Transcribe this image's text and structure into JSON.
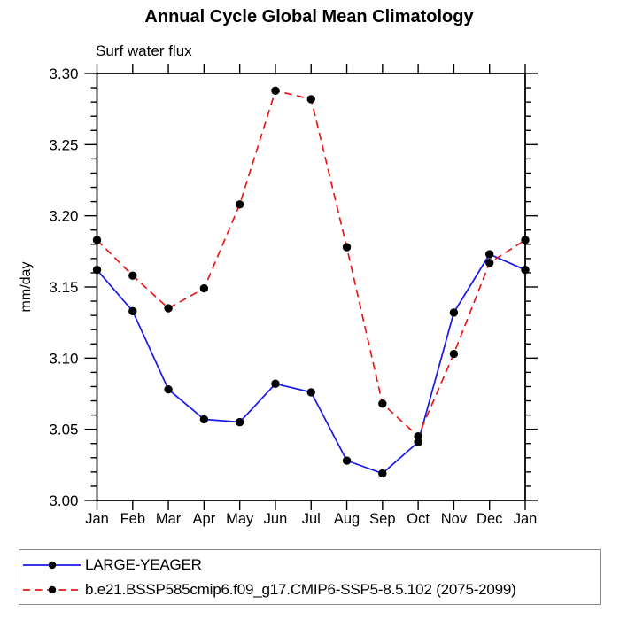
{
  "chart_data": {
    "type": "line",
    "title": "Annual Cycle Global Mean Climatology",
    "subtitle": "Surf water flux",
    "ylabel": "mm/day",
    "xlabel": "",
    "x_labels": [
      "Jan",
      "Feb",
      "Mar",
      "Apr",
      "May",
      "Jun",
      "Jul",
      "Aug",
      "Sep",
      "Oct",
      "Nov",
      "Dec",
      "Jan"
    ],
    "ylim": [
      3.0,
      3.3
    ],
    "y_major_step": 0.05,
    "y_minor_step": 0.01,
    "y_tick_labels": [
      "3.00",
      "3.05",
      "3.10",
      "3.15",
      "3.20",
      "3.25",
      "3.30"
    ],
    "grid": false,
    "legend_position": "bottom-left-box",
    "marker": "filled-circle",
    "marker_color": "#000000",
    "axis_color": "#000000",
    "series": [
      {
        "name": "LARGE-YEAGER",
        "color": "#1919e8",
        "style": "solid",
        "values": [
          3.162,
          3.133,
          3.078,
          3.057,
          3.055,
          3.082,
          3.076,
          3.028,
          3.019,
          3.041,
          3.132,
          3.173,
          3.162
        ]
      },
      {
        "name": "b.e21.BSSP585cmip6.f09_g17.CMIP6-SSP5-8.5.102 (2075-2099)",
        "color": "#e81919",
        "style": "dashed",
        "values": [
          3.183,
          3.158,
          3.135,
          3.149,
          3.208,
          3.288,
          3.282,
          3.178,
          3.068,
          3.045,
          3.103,
          3.167,
          3.183
        ]
      }
    ]
  }
}
